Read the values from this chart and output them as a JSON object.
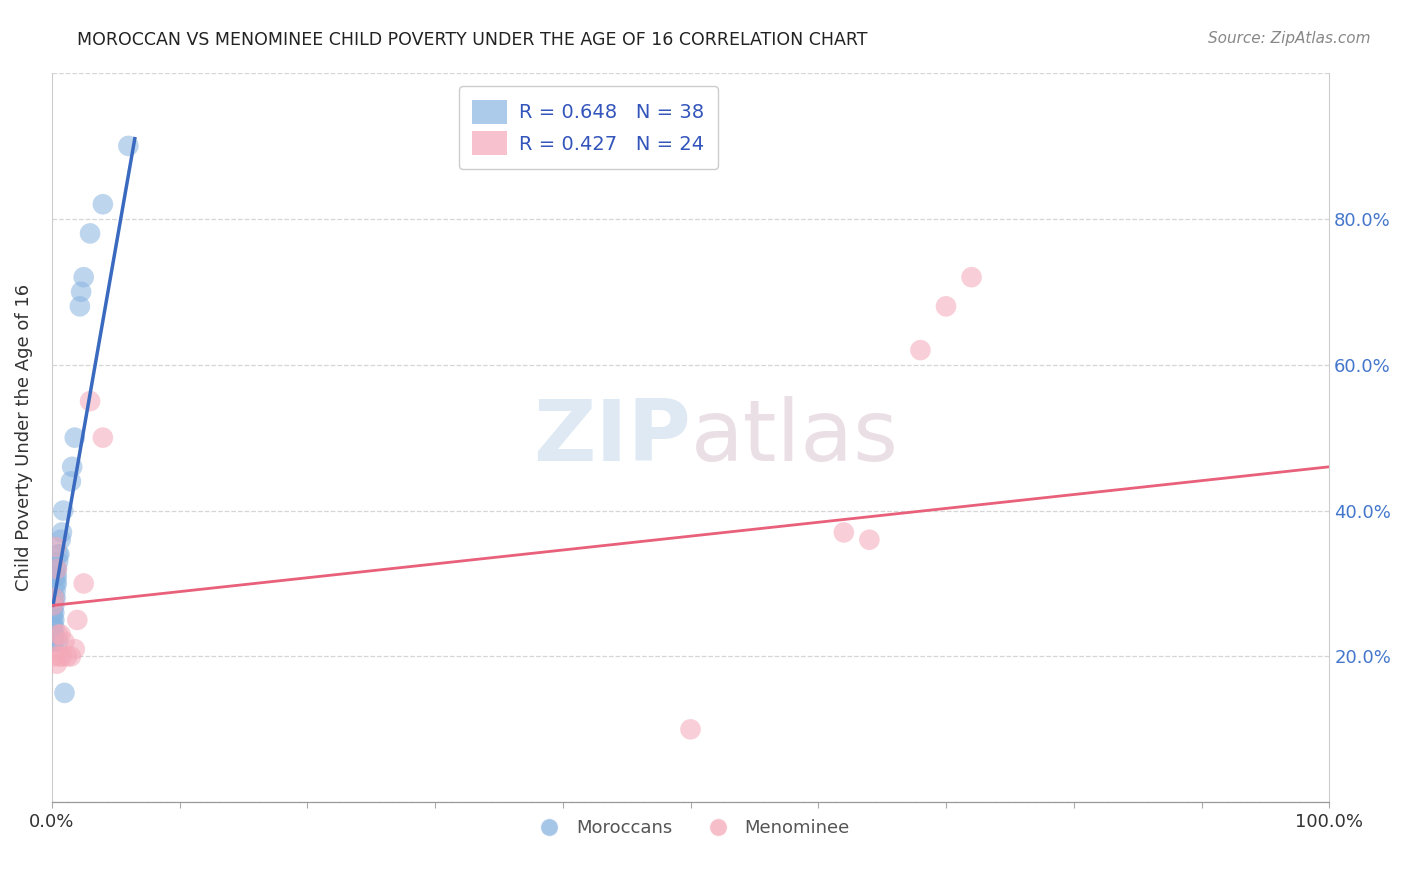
{
  "title": "MOROCCAN VS MENOMINEE CHILD POVERTY UNDER THE AGE OF 16 CORRELATION CHART",
  "source": "Source: ZipAtlas.com",
  "ylabel": "Child Poverty Under the Age of 16",
  "watermark_zip": "ZIP",
  "watermark_atlas": "atlas",
  "moroccan_R": 0.648,
  "moroccan_N": 38,
  "menominee_R": 0.427,
  "menominee_N": 24,
  "moroccan_color": "#89b4e0",
  "menominee_color": "#f4a8b8",
  "moroccan_line_color": "#3a6abf",
  "menominee_line_color": "#e8607a",
  "xlim": [
    0,
    1.0
  ],
  "ylim": [
    0,
    1.0
  ],
  "xticks": [
    0,
    0.1,
    0.2,
    0.3,
    0.4,
    0.5,
    0.6,
    0.7,
    0.8,
    0.9,
    1.0
  ],
  "yticks": [
    0,
    0.2,
    0.4,
    0.6,
    0.8,
    1.0
  ],
  "xticklabels_show": [
    "0.0%",
    "100.0%"
  ],
  "xticklabels_show_pos": [
    0,
    1.0
  ],
  "yticklabels_right": [
    "20.0%",
    "40.0%",
    "60.0%",
    "80.0%"
  ],
  "yticklabels_right_pos": [
    0.2,
    0.4,
    0.6,
    0.8
  ],
  "moroccan_x": [
    0.001,
    0.001,
    0.001,
    0.001,
    0.001,
    0.001,
    0.002,
    0.002,
    0.002,
    0.002,
    0.002,
    0.002,
    0.002,
    0.003,
    0.003,
    0.003,
    0.003,
    0.003,
    0.004,
    0.004,
    0.004,
    0.005,
    0.005,
    0.005,
    0.006,
    0.007,
    0.008,
    0.009,
    0.01,
    0.015,
    0.016,
    0.018,
    0.022,
    0.023,
    0.025,
    0.03,
    0.04,
    0.06
  ],
  "moroccan_y": [
    0.22,
    0.23,
    0.24,
    0.25,
    0.26,
    0.27,
    0.22,
    0.23,
    0.24,
    0.25,
    0.26,
    0.27,
    0.28,
    0.28,
    0.29,
    0.3,
    0.31,
    0.32,
    0.3,
    0.31,
    0.32,
    0.33,
    0.34,
    0.22,
    0.34,
    0.36,
    0.37,
    0.4,
    0.15,
    0.44,
    0.46,
    0.5,
    0.68,
    0.7,
    0.72,
    0.78,
    0.82,
    0.9
  ],
  "menominee_x": [
    0.001,
    0.002,
    0.002,
    0.003,
    0.004,
    0.004,
    0.005,
    0.006,
    0.007,
    0.008,
    0.01,
    0.012,
    0.015,
    0.018,
    0.02,
    0.025,
    0.03,
    0.04,
    0.5,
    0.62,
    0.64,
    0.68,
    0.7,
    0.72
  ],
  "menominee_y": [
    0.27,
    0.28,
    0.2,
    0.35,
    0.32,
    0.19,
    0.23,
    0.2,
    0.23,
    0.2,
    0.22,
    0.2,
    0.2,
    0.21,
    0.25,
    0.3,
    0.55,
    0.5,
    0.1,
    0.37,
    0.36,
    0.62,
    0.68,
    0.72
  ],
  "moroccan_line_x": [
    0.001,
    0.065
  ],
  "moroccan_line_y": [
    0.27,
    0.91
  ],
  "menominee_line_x": [
    0.001,
    1.0
  ],
  "menominee_line_y": [
    0.27,
    0.46
  ]
}
